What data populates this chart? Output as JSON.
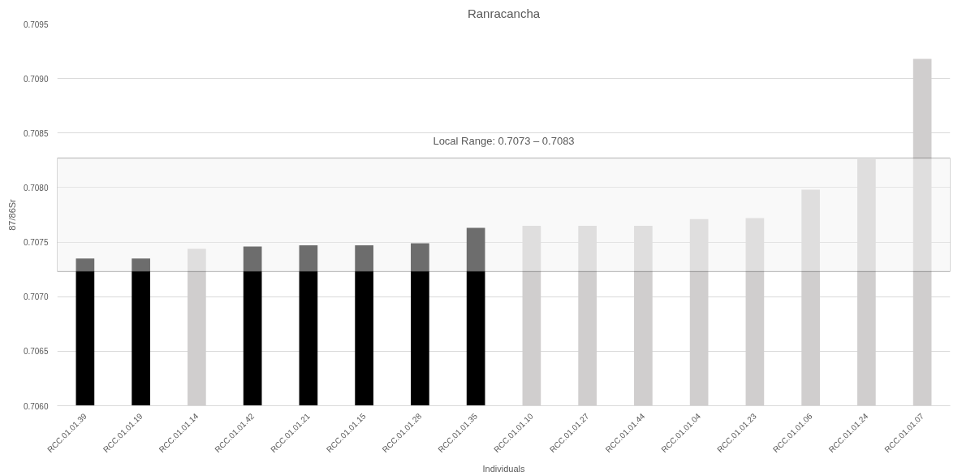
{
  "chart_data": {
    "type": "bar",
    "title": "Ranracancha",
    "xlabel": "Individuals",
    "ylabel": "87/86Sr",
    "categories": [
      "RCC.01.01.39",
      "RCC.01.01.19",
      "RCC.01.01.14",
      "RCC.01.01.42",
      "RCC.01.01.21",
      "RCC.01.01.15",
      "RCC.01.01.28",
      "RCC.01.01.35",
      "RCC.01.01.10",
      "RCC.01.01.27",
      "RCC.01.01.44",
      "RCC.01.01.04",
      "RCC.01.01.23",
      "RCC.01.01.06",
      "RCC.01.01.24",
      "RCC.01.01.07"
    ],
    "values": [
      0.70735,
      0.70735,
      0.70744,
      0.70746,
      0.70747,
      0.70747,
      0.70749,
      0.70763,
      0.70765,
      0.70765,
      0.70765,
      0.70771,
      0.70772,
      0.70798,
      0.70826,
      0.70918
    ],
    "colors": [
      "#000000",
      "#000000",
      "#d0cece",
      "#000000",
      "#000000",
      "#000000",
      "#000000",
      "#000000",
      "#d0cece",
      "#d0cece",
      "#d0cece",
      "#d0cece",
      "#d0cece",
      "#d0cece",
      "#d0cece",
      "#d0cece"
    ],
    "ylim": [
      0.706,
      0.7095
    ],
    "yticks": [
      {
        "value": 0.706,
        "label": "0.7060"
      },
      {
        "value": 0.7065,
        "label": "0.7065"
      },
      {
        "value": 0.707,
        "label": "0.7070"
      },
      {
        "value": 0.7075,
        "label": "0.7075"
      },
      {
        "value": 0.708,
        "label": "0.7080"
      },
      {
        "value": 0.7085,
        "label": "0.7085"
      },
      {
        "value": 0.709,
        "label": "0.7090"
      },
      {
        "value": 0.7095,
        "label": "0.7095"
      }
    ],
    "grid": "y",
    "bands": [
      {
        "axis": "y",
        "from": 0.70723,
        "to": 0.70827,
        "label": "Local Range: 0.7073 – 0.7083",
        "color": "#f2f2f2"
      }
    ]
  }
}
